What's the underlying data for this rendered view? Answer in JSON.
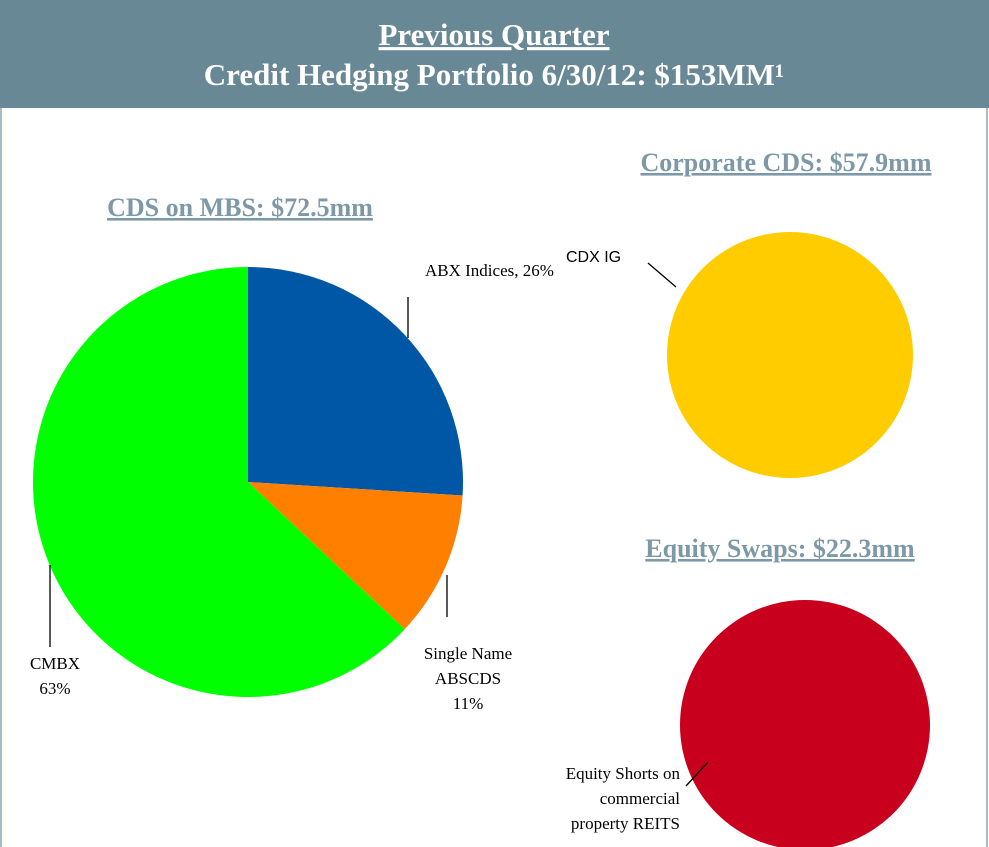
{
  "header": {
    "title": "Previous Quarter",
    "subtitle": "Credit Hedging Portfolio 6/30/12: $153MM¹"
  },
  "chart_data": [
    {
      "type": "pie",
      "title": "CDS on MBS: $72.5mm",
      "values": [
        26,
        11,
        63
      ],
      "value_labels": [
        [
          "ABX Indices, 26%"
        ],
        [
          "Single Name",
          "ABSCDS",
          "11%"
        ],
        [
          "CMBX",
          "63%"
        ]
      ],
      "colors": [
        "#0057a6",
        "#ff8000",
        "#00ff00"
      ]
    },
    {
      "type": "pie",
      "title": "Corporate CDS: $57.9mm",
      "values": [
        100
      ],
      "value_labels": [
        [
          "CDX IG"
        ]
      ],
      "colors": [
        "#ffcc00"
      ]
    },
    {
      "type": "pie",
      "title": "Equity Swaps: $22.3mm",
      "values": [
        100
      ],
      "value_labels": [
        [
          "Equity Shorts on",
          "commercial",
          "property REITS"
        ]
      ],
      "colors": [
        "#c8001e"
      ]
    }
  ]
}
